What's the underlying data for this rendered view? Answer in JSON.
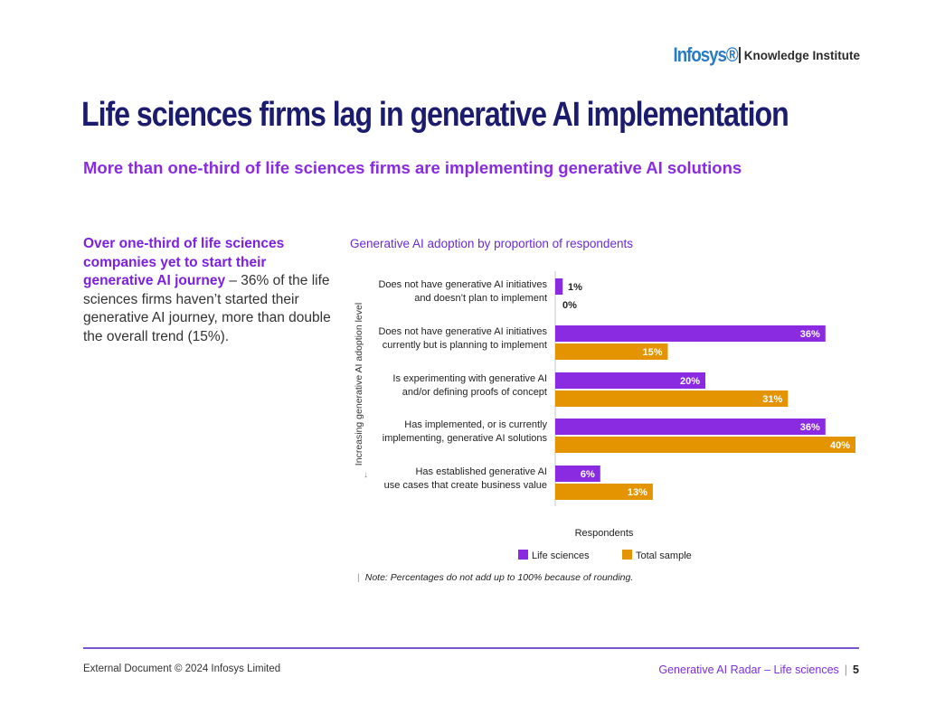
{
  "header": {
    "brand": "Infosys®",
    "brand_sub": "Knowledge Institute"
  },
  "page_title": "Life sciences firms lag in generative AI implementation",
  "subtitle": "More than one-third of life sciences firms are implementing generative AI solutions",
  "lede": {
    "highlight": "Over one-third of life sciences companies yet to start their generative AI journey",
    "body": " – 36% of the life sciences firms haven’t started their generative AI journey, more than double the overall trend (15%)."
  },
  "chart_data": {
    "type": "bar",
    "orientation": "horizontal",
    "title": "Generative AI adoption by proportion of respondents",
    "xlabel": "Respondents",
    "ylabel": "Increasing generative AI adoption level",
    "xlim": [
      0,
      40
    ],
    "categories": [
      [
        "Does not have generative AI initiatives",
        "and doesn’t plan to implement"
      ],
      [
        "Does not have generative AI initiatives",
        "currently but is planning to implement"
      ],
      [
        "Is experimenting with generative AI",
        "and/or defining proofs of concept"
      ],
      [
        "Has implemented, or is currently",
        "implementing, generative AI solutions"
      ],
      [
        "Has established generative AI",
        "use cases that create business value"
      ]
    ],
    "series": [
      {
        "name": "Life sciences",
        "color": "#8a2be2",
        "values": [
          1,
          36,
          20,
          36,
          6
        ],
        "labels": [
          "1%",
          "36%",
          "20%",
          "36%",
          "6%"
        ]
      },
      {
        "name": "Total sample",
        "color": "#e39400",
        "values": [
          0,
          15,
          31,
          40,
          13
        ],
        "labels": [
          "0%",
          "15%",
          "31%",
          "40%",
          "13%"
        ]
      }
    ],
    "legend": "bottom"
  },
  "note": "Note: Percentages do not add up to 100% because of rounding.",
  "footer": {
    "left": "External Document © 2024 Infosys Limited",
    "right": "Generative AI Radar – Life sciences",
    "page": "5"
  }
}
